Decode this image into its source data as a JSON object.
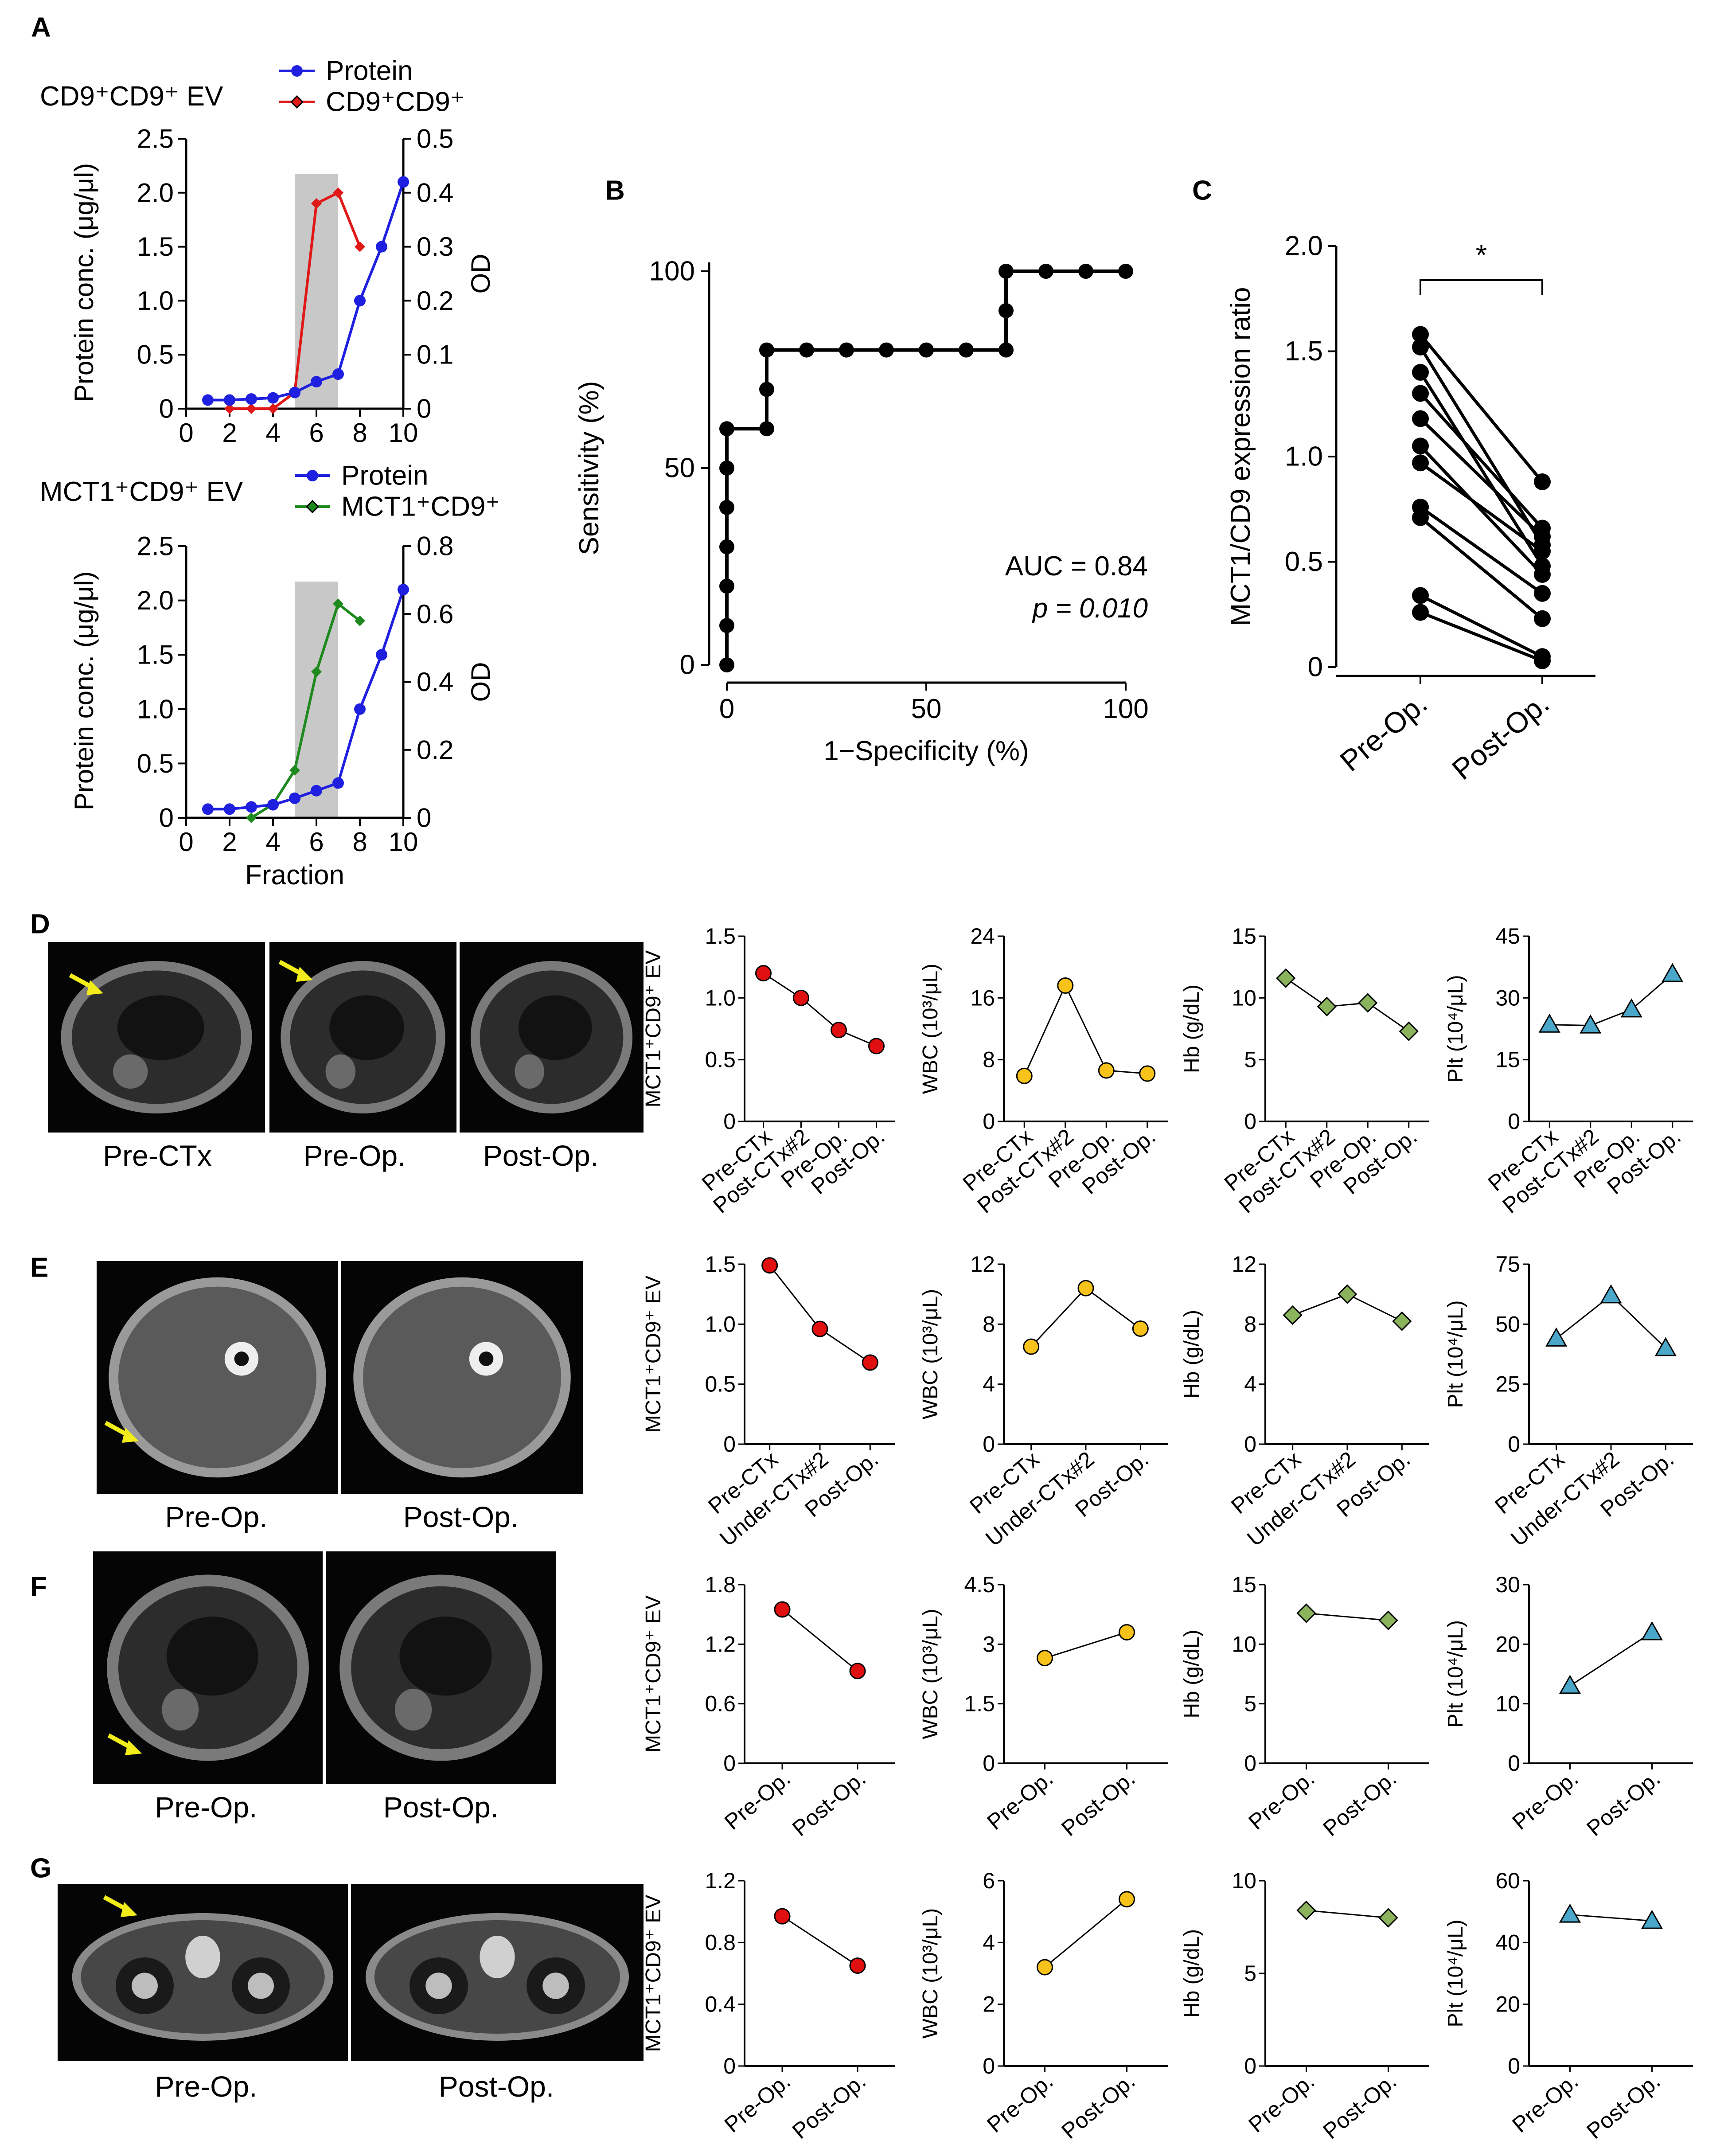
{
  "figure": {
    "panel_labels": [
      "A",
      "B",
      "C",
      "D",
      "E",
      "F",
      "G"
    ],
    "colors": {
      "protein": "#1f1fe0",
      "cd9": "#e01818",
      "mct1": "#1e8a1e",
      "red_dot": "#e01010",
      "yellow_dot": "#f7c21a",
      "green_diamond": "#8ab35c",
      "blue_triangle": "#4aa7c9",
      "band": "#c8c8c8",
      "arrow": "#f2ec1a"
    }
  },
  "panel_a": {
    "top": {
      "title": "CD9⁺CD9⁺ EV",
      "legend": [
        "Protein",
        "CD9⁺CD9⁺"
      ],
      "ylabel_left": "Protein conc. (μg/μl)",
      "ylabel_right": "OD",
      "yticks_left": [
        "0",
        "0.5",
        "1.0",
        "1.5",
        "2.0",
        "2.5"
      ],
      "yticks_right": [
        "0",
        "0.1",
        "0.2",
        "0.3",
        "0.4",
        "0.5"
      ],
      "xticks": [
        "0",
        "2",
        "4",
        "6",
        "8",
        "10"
      ]
    },
    "bottom": {
      "title": "MCT1⁺CD9⁺ EV",
      "legend": [
        "Protein",
        "MCT1⁺CD9⁺"
      ],
      "ylabel_left": "Protein conc. (μg/μl)",
      "ylabel_right": "OD",
      "yticks_left": [
        "0",
        "0.5",
        "1.0",
        "1.5",
        "2.0",
        "2.5"
      ],
      "yticks_right": [
        "0",
        "0.2",
        "0.4",
        "0.6",
        "0.8"
      ],
      "xticks": [
        "0",
        "2",
        "4",
        "6",
        "8",
        "10"
      ],
      "xlabel": "Fraction"
    }
  },
  "panel_b": {
    "ylabel": "Sensitivity (%)",
    "xlabel": "1−Specificity (%)",
    "yticks": [
      "0",
      "50",
      "100"
    ],
    "xticks": [
      "0",
      "50",
      "100"
    ],
    "auc": "AUC = 0.84",
    "p": "p = 0.010"
  },
  "panel_c": {
    "ylabel": "MCT1/CD9 expression ratio",
    "yticks": [
      "0",
      "0.5",
      "1.0",
      "1.5",
      "2.0"
    ],
    "xticks": [
      "Pre-Op.",
      "Post-Op."
    ],
    "sig": "*"
  },
  "images": {
    "D": [
      "Pre-CTx",
      "Pre-Op.",
      "Post-Op."
    ],
    "E": [
      "Pre-Op.",
      "Post-Op."
    ],
    "F": [
      "Pre-Op.",
      "Post-Op."
    ],
    "G": [
      "Pre-Op.",
      "Post-Op."
    ]
  },
  "ylabels": {
    "ev": "MCT1⁺CD9⁺ EV",
    "wbc": "WBC (10³/μL)",
    "hb": "Hb (g/dL)",
    "plt": "Plt (10⁴/μL)"
  },
  "chart_data": [
    {
      "id": "A-top",
      "type": "line",
      "title": "CD9⁺CD9⁺ EV",
      "xlabel": "",
      "ylabel": "Protein conc. (μg/μl)",
      "y2label": "OD",
      "xlim": [
        0,
        10
      ],
      "ylim": [
        0,
        2.5
      ],
      "y2lim": [
        0,
        0.5
      ],
      "highlight_band": [
        5,
        7
      ],
      "series": [
        {
          "name": "Protein",
          "axis": "left",
          "x": [
            1,
            2,
            3,
            4,
            5,
            6,
            7,
            8,
            9,
            10
          ],
          "y": [
            0.08,
            0.08,
            0.09,
            0.1,
            0.15,
            0.25,
            0.32,
            1.0,
            1.5,
            2.1
          ]
        },
        {
          "name": "CD9⁺CD9⁺",
          "axis": "right",
          "x": [
            2,
            3,
            4,
            5,
            6,
            7,
            8
          ],
          "y": [
            0.0,
            0.0,
            0.0,
            0.03,
            0.38,
            0.4,
            0.3
          ]
        }
      ]
    },
    {
      "id": "A-bottom",
      "type": "line",
      "title": "MCT1⁺CD9⁺ EV",
      "xlabel": "Fraction",
      "ylabel": "Protein conc. (μg/μl)",
      "y2label": "OD",
      "xlim": [
        0,
        10
      ],
      "ylim": [
        0,
        2.5
      ],
      "y2lim": [
        0,
        0.8
      ],
      "highlight_band": [
        5,
        7
      ],
      "series": [
        {
          "name": "Protein",
          "axis": "left",
          "x": [
            1,
            2,
            3,
            4,
            5,
            6,
            7,
            8,
            9,
            10
          ],
          "y": [
            0.08,
            0.08,
            0.1,
            0.12,
            0.18,
            0.25,
            0.32,
            1.0,
            1.5,
            2.1
          ]
        },
        {
          "name": "MCT1⁺CD9⁺",
          "axis": "right",
          "x": [
            3,
            4,
            5,
            6,
            7,
            8
          ],
          "y": [
            0.0,
            0.04,
            0.14,
            0.43,
            0.63,
            0.58
          ]
        }
      ]
    },
    {
      "id": "B",
      "type": "line",
      "subtype": "roc",
      "xlabel": "1−Specificity (%)",
      "ylabel": "Sensitivity (%)",
      "xlim": [
        0,
        100
      ],
      "ylim": [
        0,
        100
      ],
      "x": [
        0,
        0,
        0,
        0,
        0,
        0,
        0,
        10,
        10,
        10,
        20,
        30,
        40,
        50,
        60,
        70,
        70,
        70,
        80,
        90,
        100
      ],
      "y": [
        0,
        10,
        20,
        30,
        40,
        50,
        60,
        60,
        70,
        80,
        80,
        80,
        80,
        80,
        80,
        80,
        90,
        100,
        100,
        100,
        100
      ],
      "annotations": [
        "AUC = 0.84",
        "p = 0.010"
      ]
    },
    {
      "id": "C",
      "type": "scatter",
      "subtype": "paired",
      "ylabel": "MCT1/CD9 expression ratio",
      "ylim": [
        0,
        2.0
      ],
      "categories": [
        "Pre-Op.",
        "Post-Op."
      ],
      "pairs": [
        [
          1.58,
          0.88
        ],
        [
          1.52,
          0.58
        ],
        [
          1.4,
          0.48
        ],
        [
          1.3,
          0.66
        ],
        [
          1.18,
          0.62
        ],
        [
          1.05,
          0.44
        ],
        [
          0.97,
          0.55
        ],
        [
          0.76,
          0.35
        ],
        [
          0.71,
          0.23
        ],
        [
          0.34,
          0.05
        ],
        [
          0.26,
          0.03
        ]
      ],
      "significance": "*"
    },
    {
      "id": "D-ev",
      "type": "line",
      "ylabel": "MCT1⁺CD9⁺ EV",
      "categories": [
        "Pre-CTx",
        "Post-CTx#2",
        "Pre-Op.",
        "Post-Op."
      ],
      "values": [
        1.2,
        1.0,
        0.74,
        0.61
      ],
      "ylim": [
        0,
        1.5
      ],
      "yticks": [
        "0",
        "0.5",
        "1.0",
        "1.5"
      ]
    },
    {
      "id": "D-wbc",
      "type": "line",
      "ylabel": "WBC (10³/μL)",
      "categories": [
        "Pre-CTx",
        "Post-CTx#2",
        "Pre-Op.",
        "Post-Op."
      ],
      "values": [
        5.9,
        17.6,
        6.6,
        6.2
      ],
      "ylim": [
        0,
        24
      ],
      "yticks": [
        "0",
        "8",
        "16",
        "24"
      ]
    },
    {
      "id": "D-hb",
      "type": "line",
      "ylabel": "Hb (g/dL)",
      "categories": [
        "Pre-CTx",
        "Post-CTx#2",
        "Pre-Op.",
        "Post-Op."
      ],
      "values": [
        11.6,
        9.3,
        9.6,
        7.3
      ],
      "ylim": [
        0,
        15
      ],
      "yticks": [
        "0",
        "5",
        "10",
        "15"
      ]
    },
    {
      "id": "D-plt",
      "type": "line",
      "ylabel": "Plt (10⁴/μL)",
      "categories": [
        "Pre-CTx",
        "Post-CTx#2",
        "Pre-Op.",
        "Post-Op."
      ],
      "values": [
        23.5,
        23.3,
        27.2,
        35.8
      ],
      "ylim": [
        0,
        45
      ],
      "yticks": [
        "0",
        "15",
        "30",
        "45"
      ]
    },
    {
      "id": "E-ev",
      "type": "line",
      "ylabel": "MCT1⁺CD9⁺ EV",
      "categories": [
        "Pre-CTx",
        "Under-CTx#2",
        "Post-Op."
      ],
      "values": [
        1.49,
        0.96,
        0.68
      ],
      "ylim": [
        0,
        1.5
      ],
      "yticks": [
        "0",
        "0.5",
        "1.0",
        "1.5"
      ]
    },
    {
      "id": "E-wbc",
      "type": "line",
      "ylabel": "WBC (10³/μL)",
      "categories": [
        "Pre-CTx",
        "Under-CTx#2",
        "Post-Op."
      ],
      "values": [
        6.5,
        10.4,
        7.7
      ],
      "ylim": [
        0,
        12
      ],
      "yticks": [
        "0",
        "4",
        "8",
        "12"
      ]
    },
    {
      "id": "E-hb",
      "type": "line",
      "ylabel": "Hb (g/dL)",
      "categories": [
        "Pre-CTx",
        "Under-CTx#2",
        "Post-Op."
      ],
      "values": [
        8.6,
        10.0,
        8.2
      ],
      "ylim": [
        0,
        12
      ],
      "yticks": [
        "0",
        "4",
        "8",
        "12"
      ]
    },
    {
      "id": "E-plt",
      "type": "line",
      "ylabel": "Plt (10⁴/μL)",
      "categories": [
        "Pre-CTx",
        "Under-CTx#2",
        "Post-Op."
      ],
      "values": [
        44,
        62,
        40
      ],
      "ylim": [
        0,
        75
      ],
      "yticks": [
        "0",
        "25",
        "50",
        "75"
      ]
    },
    {
      "id": "F-ev",
      "type": "line",
      "ylabel": "MCT1⁺CD9⁺ EV",
      "categories": [
        "Pre-Op.",
        "Post-Op."
      ],
      "values": [
        1.55,
        0.93
      ],
      "ylim": [
        0,
        1.8
      ],
      "yticks": [
        "0",
        "0.6",
        "1.2",
        "1.8"
      ]
    },
    {
      "id": "F-wbc",
      "type": "line",
      "ylabel": "WBC (10³/μL)",
      "categories": [
        "Pre-Op.",
        "Post-Op."
      ],
      "values": [
        2.65,
        3.3
      ],
      "ylim": [
        0,
        4.5
      ],
      "yticks": [
        "0",
        "1.5",
        "3",
        "4.5"
      ]
    },
    {
      "id": "F-hb",
      "type": "line",
      "ylabel": "Hb (g/dL)",
      "categories": [
        "Pre-Op.",
        "Post-Op."
      ],
      "values": [
        12.6,
        12.0
      ],
      "ylim": [
        0,
        15
      ],
      "yticks": [
        "0",
        "5",
        "10",
        "15"
      ]
    },
    {
      "id": "F-plt",
      "type": "line",
      "ylabel": "Plt (10⁴/μL)",
      "categories": [
        "Pre-Op.",
        "Post-Op."
      ],
      "values": [
        13,
        22
      ],
      "ylim": [
        0,
        30
      ],
      "yticks": [
        "0",
        "10",
        "20",
        "30"
      ]
    },
    {
      "id": "G-ev",
      "type": "line",
      "ylabel": "MCT1⁺CD9⁺ EV",
      "categories": [
        "Pre-Op.",
        "Post-Op."
      ],
      "values": [
        0.97,
        0.65
      ],
      "ylim": [
        0,
        1.2
      ],
      "yticks": [
        "0",
        "0.4",
        "0.8",
        "1.2"
      ]
    },
    {
      "id": "G-wbc",
      "type": "line",
      "ylabel": "WBC (10³/μL)",
      "categories": [
        "Pre-Op.",
        "Post-Op."
      ],
      "values": [
        3.2,
        5.4
      ],
      "ylim": [
        0,
        6
      ],
      "yticks": [
        "0",
        "2",
        "4",
        "6"
      ]
    },
    {
      "id": "G-hb",
      "type": "line",
      "ylabel": "Hb (g/dL)",
      "categories": [
        "Pre-Op.",
        "Post-Op."
      ],
      "values": [
        8.4,
        8.0
      ],
      "ylim": [
        0,
        10
      ],
      "yticks": [
        "0",
        "5",
        "10"
      ]
    },
    {
      "id": "G-plt",
      "type": "line",
      "ylabel": "Plt (10⁴/μL)",
      "categories": [
        "Pre-Op.",
        "Post-Op."
      ],
      "values": [
        49,
        47
      ],
      "ylim": [
        0,
        60
      ],
      "yticks": [
        "0",
        "20",
        "40",
        "60"
      ]
    }
  ]
}
